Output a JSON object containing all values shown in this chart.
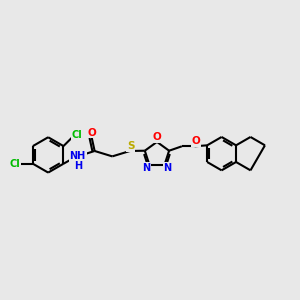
{
  "background_color": "#e8e8e8",
  "bond_color": "#000000",
  "bond_width": 1.5,
  "cl_color": "#00bb00",
  "o_color": "#ff0000",
  "n_color": "#0000ee",
  "s_color": "#bbaa00",
  "figsize": [
    3.0,
    3.0
  ],
  "dpi": 100,
  "xlim": [
    0,
    12
  ],
  "ylim": [
    0,
    9
  ]
}
